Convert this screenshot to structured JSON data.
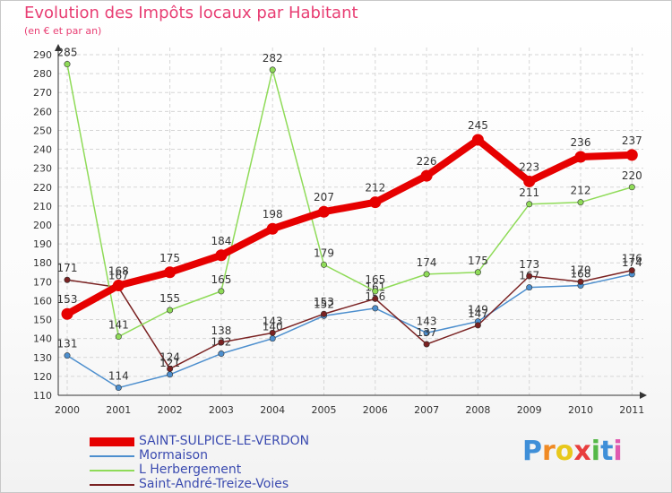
{
  "chart_data": {
    "type": "line",
    "title": "Evolution des Impôts locaux par Habitant",
    "subtitle": "(en € et par an)",
    "x": [
      "2000",
      "2001",
      "2002",
      "2003",
      "2004",
      "2005",
      "2006",
      "2007",
      "2008",
      "2009",
      "2010",
      "2011"
    ],
    "ylim": [
      110,
      290
    ],
    "ytick_step": 10,
    "grid": true,
    "legend_position": "bottom-left",
    "series": [
      {
        "name": "SAINT-SULPICE-LE-VERDON",
        "color": "#e60000",
        "values": [
          153,
          168,
          175,
          184,
          198,
          207,
          212,
          226,
          245,
          223,
          236,
          237
        ],
        "labels": [
          "153",
          "168",
          "175",
          "184",
          "198",
          "207",
          "212",
          "226",
          "245",
          "223",
          "236",
          "237"
        ],
        "style": "thick"
      },
      {
        "name": "Mormaison",
        "color": "#4d8fce",
        "values": [
          131,
          114,
          121,
          132,
          140,
          152,
          156,
          143,
          149,
          167,
          168,
          174
        ],
        "labels": [
          "131",
          "114",
          "121",
          "132",
          "140",
          "152",
          "156",
          "143",
          "149",
          "167",
          "168",
          "174"
        ],
        "style": "thin"
      },
      {
        "name": "L  Herbergement",
        "color": "#8fdb58",
        "values": [
          285,
          141,
          155,
          165,
          282,
          179,
          165,
          174,
          175,
          211,
          212,
          220
        ],
        "labels": [
          "285",
          "141",
          "155",
          "165",
          "282",
          "179",
          "165",
          "174",
          "175",
          "211",
          "212",
          "220"
        ],
        "style": "thin"
      },
      {
        "name": "Saint-André-Treize-Voies",
        "color": "#7a2222",
        "values": [
          171,
          167,
          124,
          138,
          143,
          153,
          161,
          137,
          147,
          173,
          170,
          176
        ],
        "labels": [
          "171",
          "167",
          "124",
          "138",
          "143",
          "153",
          "161",
          "137",
          "147",
          "173",
          "170",
          "176"
        ],
        "style": "thin"
      }
    ]
  },
  "brand": {
    "letters": [
      "P",
      "r",
      "o",
      "x",
      "i",
      "t",
      "i"
    ],
    "colors": [
      "#3f8fd8",
      "#f08a24",
      "#e8c81c",
      "#e83e3e",
      "#55b848",
      "#3f8fd8",
      "#e05ab0"
    ]
  }
}
